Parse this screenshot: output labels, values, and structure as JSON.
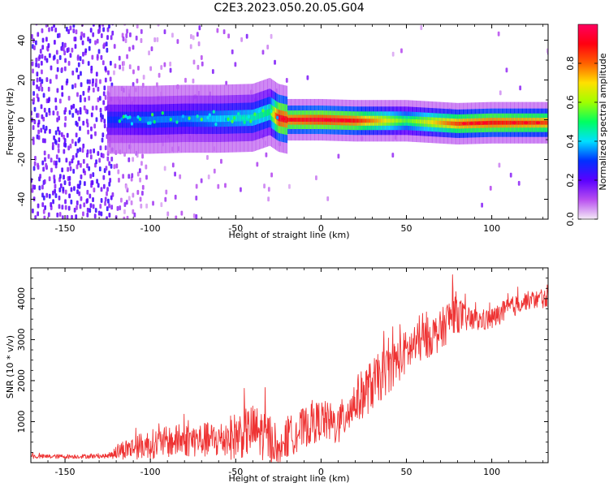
{
  "title": "C2E3.2023.050.20.05.G04",
  "chart_data": [
    {
      "type": "heatmap",
      "xlabel": "Height of straight line (km)",
      "ylabel": "Frequency (Hz)",
      "xlim": [
        -170,
        133
      ],
      "ylim": [
        -50,
        48
      ],
      "xticks": [
        -150,
        -100,
        -50,
        0,
        50,
        100
      ],
      "yticks": [
        -40,
        -20,
        0,
        20,
        40
      ],
      "colorbar": {
        "label": "Normalized spectral amplitude",
        "range": [
          0.0,
          1.0
        ],
        "ticks": [
          0.0,
          0.2,
          0.4,
          0.6,
          0.8
        ],
        "colormap": [
          "#f4eaf6",
          "#b84ef0",
          "#5a00ff",
          "#0030ff",
          "#00e0ff",
          "#00ff60",
          "#a0ff00",
          "#ffe000",
          "#ff6000",
          "#ff0010",
          "#ff0060"
        ]
      },
      "ridge": {
        "x": [
          -120,
          -100,
          -80,
          -60,
          -40,
          -30,
          -25,
          -20,
          0,
          20,
          50,
          80,
          100,
          133
        ],
        "y": [
          0,
          0,
          0.5,
          0.5,
          1,
          4,
          1,
          0,
          0,
          -0.5,
          -0.5,
          -2,
          -1.5,
          -1.5
        ],
        "peak_amplitude": [
          0.3,
          0.35,
          0.35,
          0.4,
          0.45,
          0.5,
          0.95,
          0.9,
          0.95,
          0.9,
          0.55,
          0.85,
          0.9,
          0.85
        ]
      }
    },
    {
      "type": "line",
      "xlabel": "Height of straight line (km)",
      "ylabel": "SNR (10 * v/v)",
      "xlim": [
        -170,
        133
      ],
      "ylim": [
        0,
        4750
      ],
      "xticks": [
        -150,
        -100,
        -50,
        0,
        50,
        100
      ],
      "yticks": [
        1000,
        2000,
        3000,
        4000
      ],
      "series": [
        {
          "color": "#ee3333",
          "x": [
            -170,
            -150,
            -125,
            -118,
            -100,
            -80,
            -60,
            -50,
            -40,
            -30,
            -25,
            -20,
            -10,
            0,
            10,
            20,
            30,
            40,
            50,
            60,
            70,
            78,
            85,
            90,
            100,
            110,
            120,
            133
          ],
          "center": [
            150,
            150,
            160,
            300,
            450,
            550,
            550,
            650,
            800,
            600,
            250,
            600,
            850,
            1050,
            900,
            1500,
            1900,
            2300,
            2700,
            3000,
            3200,
            3700,
            3500,
            3450,
            3500,
            3750,
            3950,
            4000
          ],
          "spread": [
            60,
            60,
            60,
            250,
            400,
            450,
            500,
            650,
            700,
            700,
            300,
            550,
            550,
            550,
            550,
            650,
            700,
            650,
            600,
            550,
            550,
            600,
            350,
            300,
            300,
            300,
            250,
            250
          ]
        }
      ]
    }
  ]
}
